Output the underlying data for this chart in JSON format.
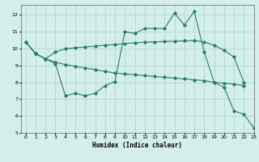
{
  "x_main": [
    0,
    1,
    2,
    3,
    4,
    5,
    6,
    7,
    8,
    9,
    10,
    11,
    12,
    13,
    14,
    15,
    16,
    17,
    18,
    19,
    20,
    21,
    22,
    23
  ],
  "y_main": [
    10.4,
    9.7,
    9.4,
    9.1,
    7.2,
    7.35,
    7.2,
    7.35,
    7.8,
    8.05,
    11.0,
    10.9,
    11.2,
    11.2,
    11.2,
    12.1,
    11.4,
    12.2,
    9.8,
    8.0,
    7.7,
    6.3,
    6.1,
    5.3
  ],
  "x_upper": [
    0,
    1,
    2,
    3,
    4,
    5,
    6,
    7,
    8,
    9,
    10,
    11,
    12,
    13,
    14,
    15,
    16,
    17,
    18,
    19,
    20,
    21,
    22
  ],
  "y_upper": [
    10.4,
    9.7,
    9.4,
    9.8,
    10.0,
    10.05,
    10.1,
    10.15,
    10.2,
    10.25,
    10.3,
    10.35,
    10.38,
    10.4,
    10.42,
    10.44,
    10.46,
    10.48,
    10.4,
    10.2,
    9.9,
    9.5,
    8.0
  ],
  "x_lower": [
    0,
    1,
    2,
    3,
    4,
    5,
    6,
    7,
    8,
    9,
    10,
    11,
    12,
    13,
    14,
    15,
    16,
    17,
    18,
    19,
    20,
    21,
    22
  ],
  "y_lower": [
    10.4,
    9.7,
    9.4,
    9.2,
    9.05,
    8.95,
    8.85,
    8.75,
    8.65,
    8.55,
    8.5,
    8.45,
    8.4,
    8.35,
    8.3,
    8.25,
    8.2,
    8.15,
    8.1,
    8.0,
    7.95,
    7.9,
    7.8
  ],
  "line_color": "#2e7d6e",
  "bg_color": "#d4eeea",
  "grid_color": "#aed4ce",
  "xlabel": "Humidex (Indice chaleur)",
  "xlim": [
    -0.5,
    23
  ],
  "ylim": [
    5,
    12.6
  ],
  "yticks": [
    5,
    6,
    7,
    8,
    9,
    10,
    11,
    12
  ],
  "xticks": [
    0,
    1,
    2,
    3,
    4,
    5,
    6,
    7,
    8,
    9,
    10,
    11,
    12,
    13,
    14,
    15,
    16,
    17,
    18,
    19,
    20,
    21,
    22,
    23
  ],
  "marker": "D",
  "markersize": 1.8,
  "linewidth": 0.8
}
